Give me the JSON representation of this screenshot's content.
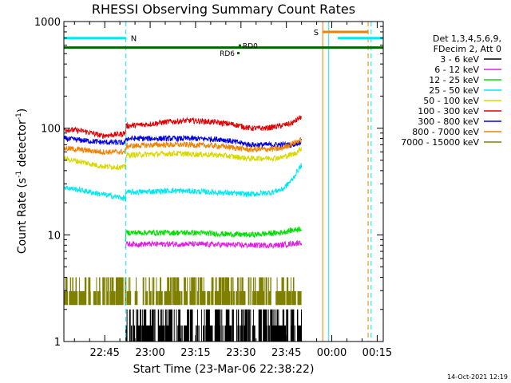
{
  "chart_data": {
    "type": "line",
    "title": "RHESSI Observing Summary Count Rates",
    "xlabel": "Start Time (23-Mar-06 22:38:22)",
    "ylabel": "Count Rate (s",
    "ylabel_sup": "-1",
    "ylabel_tail": " detector",
    "ylabel_sup2": "-1",
    "ylabel_close": ")",
    "yscale": "log",
    "ylim": [
      1,
      1000
    ],
    "xlim_minutes": [
      -6.5,
      99
    ],
    "yticks": [
      {
        "v": 1,
        "label": "1"
      },
      {
        "v": 10,
        "label": "10"
      },
      {
        "v": 100,
        "label": "100"
      },
      {
        "v": 1000,
        "label": "1000"
      }
    ],
    "xticks": [
      {
        "m": 7,
        "label": "22:45"
      },
      {
        "m": 22,
        "label": "23:00"
      },
      {
        "m": 37,
        "label": "23:15"
      },
      {
        "m": 52,
        "label": "23:30"
      },
      {
        "m": 67,
        "label": "23:45"
      },
      {
        "m": 82,
        "label": "00:00"
      },
      {
        "m": 97,
        "label": "00:15"
      }
    ],
    "legend_header": [
      "Det 1,3,4,5,6,9,",
      "FDecim 2, Att 0"
    ],
    "legend_position": "right",
    "series": [
      {
        "name": "3 - 6 keV",
        "color": "#000000"
      },
      {
        "name": "6 - 12 keV",
        "color": "#e020e0"
      },
      {
        "name": "12 - 25 keV",
        "color": "#00e000"
      },
      {
        "name": "25 - 50 keV",
        "color": "#00e8f0"
      },
      {
        "name": "50 - 100 keV",
        "color": "#d8d800"
      },
      {
        "name": "100 - 300 keV",
        "color": "#e00000"
      },
      {
        "name": "300 - 800 keV",
        "color": "#0000e0"
      },
      {
        "name": "800 - 7000 keV",
        "color": "#f08000"
      },
      {
        "name": "7000 - 15000 keV",
        "color": "#808000"
      }
    ],
    "profiles": [
      {
        "s": 5,
        "pts": [
          [
            -6.5,
            98
          ],
          [
            0,
            94
          ],
          [
            6,
            85
          ],
          [
            12,
            88
          ],
          [
            13.8,
            90
          ],
          [
            14,
            105
          ],
          [
            20,
            108
          ],
          [
            28,
            115
          ],
          [
            35,
            118
          ],
          [
            42,
            115
          ],
          [
            48,
            110
          ],
          [
            50,
            108
          ],
          [
            55,
            100
          ],
          [
            60,
            100
          ],
          [
            65,
            105
          ],
          [
            69,
            112
          ],
          [
            72,
            128
          ]
        ]
      },
      {
        "s": 6,
        "pts": [
          [
            -6.5,
            80
          ],
          [
            6,
            74
          ],
          [
            13.8,
            73
          ],
          [
            14,
            80
          ],
          [
            25,
            80
          ],
          [
            35,
            80
          ],
          [
            45,
            79
          ],
          [
            55,
            70
          ],
          [
            65,
            70
          ],
          [
            69,
            70
          ],
          [
            72,
            75
          ]
        ]
      },
      {
        "s": 7,
        "pts": [
          [
            -6.5,
            65
          ],
          [
            6,
            60
          ],
          [
            13.8,
            60
          ],
          [
            14,
            68
          ],
          [
            25,
            70
          ],
          [
            35,
            70
          ],
          [
            45,
            68
          ],
          [
            55,
            63
          ],
          [
            65,
            64
          ],
          [
            72,
            78
          ]
        ]
      },
      {
        "s": 4,
        "pts": [
          [
            -6.5,
            52
          ],
          [
            6,
            44
          ],
          [
            13.8,
            43
          ],
          [
            14,
            56
          ],
          [
            30,
            58
          ],
          [
            45,
            56
          ],
          [
            55,
            52
          ],
          [
            65,
            53
          ],
          [
            70,
            58
          ],
          [
            72,
            65
          ]
        ]
      },
      {
        "s": 3,
        "pts": [
          [
            -6.5,
            28
          ],
          [
            6,
            24
          ],
          [
            13.8,
            22
          ],
          [
            14,
            25
          ],
          [
            30,
            26
          ],
          [
            45,
            25
          ],
          [
            55,
            24
          ],
          [
            62,
            25
          ],
          [
            66,
            27
          ],
          [
            69,
            33
          ],
          [
            72,
            45
          ]
        ]
      },
      {
        "s": 2,
        "pts": [
          [
            13.8,
            8.5
          ],
          [
            14,
            10.5
          ],
          [
            35,
            10.5
          ],
          [
            55,
            10
          ],
          [
            65,
            10.5
          ],
          [
            72,
            11.5
          ]
        ]
      },
      {
        "s": 1,
        "pts": [
          [
            13.8,
            7.5
          ],
          [
            14,
            8.2
          ],
          [
            35,
            8.2
          ],
          [
            55,
            8
          ],
          [
            65,
            8
          ],
          [
            72,
            8.5
          ]
        ]
      }
    ],
    "noise_bands": [
      {
        "s": 8,
        "x0": -6.5,
        "x1": 72,
        "y0": 2.2,
        "y1": 4
      },
      {
        "s": 0,
        "x0": 14,
        "x1": 72,
        "y0": 1,
        "y1": 2
      }
    ],
    "status_lines": [
      {
        "color": "#006400",
        "y": 570,
        "x0": -6.5,
        "x1": 99,
        "label": ""
      },
      {
        "color": "#00e8f0",
        "y": 700,
        "x0": -6.5,
        "x1": 14,
        "label": "N"
      },
      {
        "color": "#00e8f0",
        "y": 700,
        "x0": 84,
        "x1": 99,
        "label": ""
      },
      {
        "color": "#f08000",
        "y": 800,
        "x0": 79,
        "x1": 94,
        "label": "S"
      }
    ],
    "vlines": [
      {
        "m": -6.5,
        "color": "#00e8f0",
        "dash": false
      },
      {
        "m": 14,
        "color": "#00e8f0",
        "dash": true
      },
      {
        "m": 79,
        "color": "#f08000",
        "dash": false
      },
      {
        "m": 81,
        "color": "#00e8f0",
        "dash": false
      },
      {
        "m": 94,
        "color": "#f08000",
        "dash": true
      },
      {
        "m": 95,
        "color": "#00e8f0",
        "dash": true
      }
    ],
    "markers": [
      {
        "m": 51,
        "y": 510,
        "label": "RD6",
        "align": "end"
      },
      {
        "m": 51.5,
        "y": 600,
        "label": "RD0",
        "align": "start"
      }
    ],
    "footer_date": "14-Oct-2021 12:19"
  }
}
